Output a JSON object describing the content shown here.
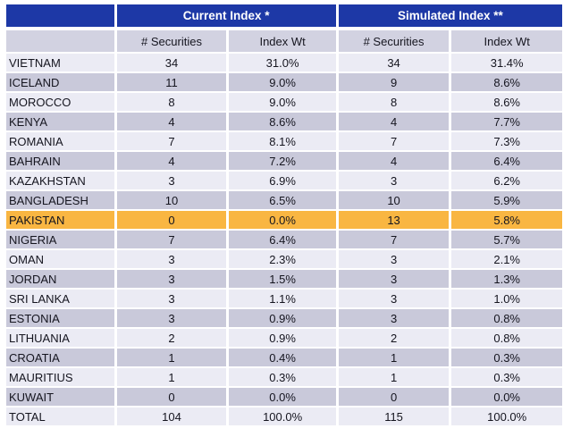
{
  "chart_data": {
    "type": "table",
    "title": "",
    "column_groups": [
      {
        "label": "Current Index *",
        "span": 2
      },
      {
        "label": "Simulated Index **",
        "span": 2
      }
    ],
    "columns": [
      "",
      "# Securities",
      "Index Wt",
      "# Securities",
      "Index Wt"
    ],
    "rows": [
      [
        "VIETNAM",
        "34",
        "31.0%",
        "34",
        "31.4%"
      ],
      [
        "ICELAND",
        "11",
        "9.0%",
        "9",
        "8.6%"
      ],
      [
        "MOROCCO",
        "8",
        "9.0%",
        "8",
        "8.6%"
      ],
      [
        "KENYA",
        "4",
        "8.6%",
        "4",
        "7.7%"
      ],
      [
        "ROMANIA",
        "7",
        "8.1%",
        "7",
        "7.3%"
      ],
      [
        "BAHRAIN",
        "4",
        "7.2%",
        "4",
        "6.4%"
      ],
      [
        "KAZAKHSTAN",
        "3",
        "6.9%",
        "3",
        "6.2%"
      ],
      [
        "BANGLADESH",
        "10",
        "6.5%",
        "10",
        "5.9%"
      ],
      [
        "PAKISTAN",
        "0",
        "0.0%",
        "13",
        "5.8%"
      ],
      [
        "NIGERIA",
        "7",
        "6.4%",
        "7",
        "5.7%"
      ],
      [
        "OMAN",
        "3",
        "2.3%",
        "3",
        "2.1%"
      ],
      [
        "JORDAN",
        "3",
        "1.5%",
        "3",
        "1.3%"
      ],
      [
        "SRI LANKA",
        "3",
        "1.1%",
        "3",
        "1.0%"
      ],
      [
        "ESTONIA",
        "3",
        "0.9%",
        "3",
        "0.8%"
      ],
      [
        "LITHUANIA",
        "2",
        "0.9%",
        "2",
        "0.8%"
      ],
      [
        "CROATIA",
        "1",
        "0.4%",
        "1",
        "0.3%"
      ],
      [
        "MAURITIUS",
        "1",
        "0.3%",
        "1",
        "0.3%"
      ],
      [
        "KUWAIT",
        "0",
        "0.0%",
        "0",
        "0.0%"
      ],
      [
        "TOTAL",
        "104",
        "100.0%",
        "115",
        "100.0%"
      ]
    ],
    "highlighted_row": "PAKISTAN",
    "layout_hints": {
      "row_striping": "alternating light/dark lavender starting light",
      "grid": "white gaps between cells"
    }
  },
  "colors": {
    "header_blue": "#1d38a6",
    "header_text": "#ffffff",
    "subheader_bg": "#d2d2e1",
    "row_light": "#ebebf4",
    "row_dark": "#c9c9da",
    "highlight_yellow": "#f9b642",
    "body_text": "#15151f",
    "background": "#ffffff"
  }
}
